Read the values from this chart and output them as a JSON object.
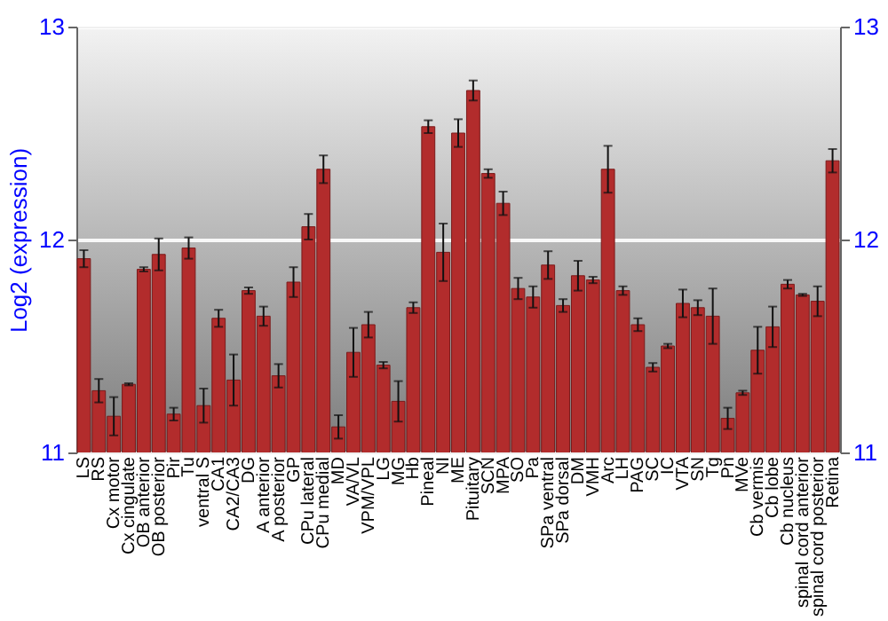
{
  "chart_data": {
    "type": "bar",
    "ylabel": "Log2 (expression)",
    "categories": [
      "LS",
      "RS",
      "Cx motor",
      "Cx cingulate",
      "OB anterior",
      "OB posterior",
      "Pir",
      "Tu",
      "ventral S",
      "CA1",
      "CA2/CA3",
      "DG",
      "A anterior",
      "A posterior",
      "GP",
      "CPu lateral",
      "CPu medial",
      "MD",
      "VA/VL",
      "VPM/VPL",
      "LG",
      "MG",
      "Hb",
      "Pineal",
      "NI",
      "ME",
      "Pituitary",
      "SCN",
      "MPA",
      "SO",
      "Pa",
      "SPa ventral",
      "SPa dorsal",
      "DM",
      "VMH",
      "Arc",
      "LH",
      "PAG",
      "SC",
      "IC",
      "VTA",
      "SN",
      "Tg",
      "Pn",
      "MVe",
      "Cb vermis",
      "Cb lobe",
      "Cb nucleus",
      "spinal cord anterior",
      "spinal cord posterior",
      "Retina"
    ],
    "series": [
      {
        "color": "#b22c2c",
        "values": [
          11.91,
          11.29,
          11.17,
          11.32,
          11.86,
          11.93,
          11.18,
          11.96,
          11.22,
          11.63,
          11.34,
          11.76,
          11.64,
          11.36,
          11.8,
          12.06,
          12.33,
          11.12,
          11.47,
          11.6,
          11.41,
          11.24,
          11.68,
          12.53,
          11.94,
          12.5,
          12.7,
          12.31,
          12.17,
          11.77,
          11.73,
          11.88,
          11.69,
          11.83,
          11.81,
          12.33,
          11.76,
          11.6,
          11.4,
          11.5,
          11.7,
          11.68,
          11.64,
          11.16,
          11.28,
          11.48,
          11.59,
          11.79,
          11.74,
          11.71,
          12.37
        ],
        "errors": [
          0.04,
          0.055,
          0.09,
          0.005,
          0.01,
          0.075,
          0.03,
          0.05,
          0.08,
          0.04,
          0.12,
          0.015,
          0.045,
          0.055,
          0.07,
          0.06,
          0.065,
          0.055,
          0.115,
          0.06,
          0.015,
          0.095,
          0.025,
          0.03,
          0.135,
          0.065,
          0.047,
          0.02,
          0.055,
          0.05,
          0.05,
          0.065,
          0.03,
          0.07,
          0.015,
          0.11,
          0.02,
          0.03,
          0.02,
          0.01,
          0.065,
          0.035,
          0.13,
          0.05,
          0.01,
          0.11,
          0.095,
          0.02,
          0.005,
          0.07,
          0.055
        ]
      }
    ],
    "ylim": [
      11,
      13
    ],
    "yticks": [
      11,
      12,
      13
    ],
    "y2lim": [
      11,
      13
    ],
    "y2ticks": [
      11,
      12,
      13
    ],
    "grid": "y"
  }
}
